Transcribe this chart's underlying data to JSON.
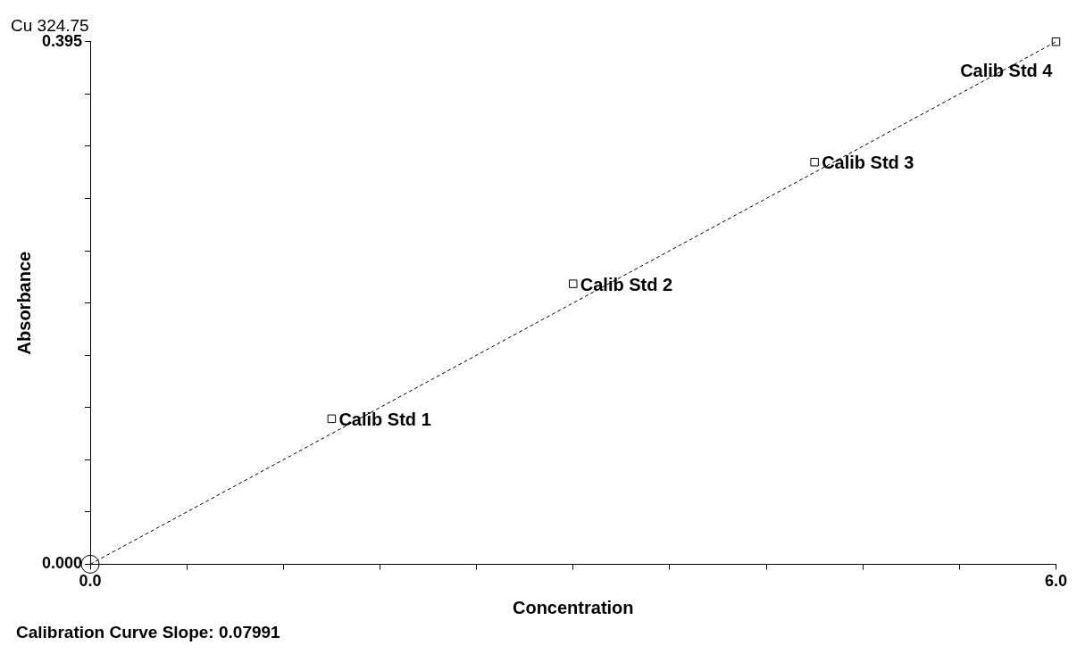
{
  "chart_data": {
    "type": "scatter",
    "title": "Cu 324.75",
    "xlabel": "Concentration",
    "ylabel": "Absorbance",
    "xlim": [
      0,
      6
    ],
    "ylim": [
      0,
      0.395
    ],
    "xticks": [
      {
        "value": 0,
        "label": "0.0"
      },
      {
        "value": 0.6,
        "label": null
      },
      {
        "value": 1.2,
        "label": null
      },
      {
        "value": 1.8,
        "label": null
      },
      {
        "value": 2.4,
        "label": null
      },
      {
        "value": 3,
        "label": null
      },
      {
        "value": 3.6,
        "label": null
      },
      {
        "value": 4.2,
        "label": null
      },
      {
        "value": 4.8,
        "label": null
      },
      {
        "value": 5.4,
        "label": null
      },
      {
        "value": 6,
        "label": "6.0"
      }
    ],
    "yticks": [
      {
        "value": 0,
        "label": "0.000"
      },
      {
        "value": 0.0395,
        "label": null
      },
      {
        "value": 0.079,
        "label": null
      },
      {
        "value": 0.1185,
        "label": null
      },
      {
        "value": 0.158,
        "label": null
      },
      {
        "value": 0.1975,
        "label": null
      },
      {
        "value": 0.237,
        "label": null
      },
      {
        "value": 0.2765,
        "label": null
      },
      {
        "value": 0.316,
        "label": null
      },
      {
        "value": 0.3555,
        "label": null
      },
      {
        "value": 0.395,
        "label": "0.395"
      }
    ],
    "grid": false,
    "legend": false,
    "series": [
      {
        "type": "line",
        "color": "#000000",
        "x": [
          0,
          6
        ],
        "values": [
          0,
          0.395
        ],
        "marker": "none",
        "line_style": "dashed"
      },
      {
        "type": "scatter",
        "color": "#000000",
        "x": [
          0
        ],
        "values": [
          0
        ],
        "marker": "circle"
      },
      {
        "type": "scatter",
        "color": "#000000",
        "x": [
          1.5,
          3,
          4.5,
          6
        ],
        "values": [
          0.11,
          0.212,
          0.304,
          0.395
        ],
        "marker": "square"
      }
    ],
    "annotations": [
      {
        "text": "Calib Std 1",
        "x": 1.5,
        "y": 0.11
      },
      {
        "text": "Calib Std 2",
        "x": 3,
        "y": 0.212
      },
      {
        "text": "Calib Std 3",
        "x": 4.5,
        "y": 0.304
      },
      {
        "text": "Calib Std 4",
        "x": 6,
        "y": 0.395
      },
      "Calibration Curve Slope:  0.07991"
    ]
  }
}
